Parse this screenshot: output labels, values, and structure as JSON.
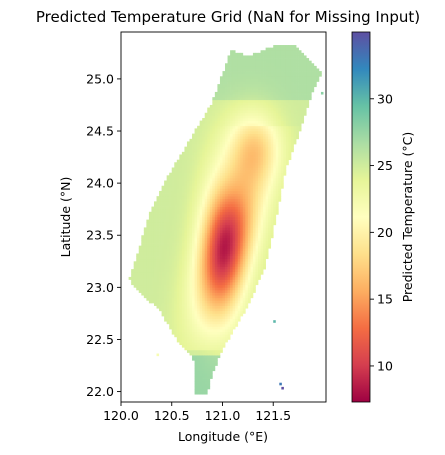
{
  "chart_data": {
    "type": "heatmap",
    "title": "Predicted Temperature Grid (NaN for Missing Input)",
    "xlabel": "Longitude (°E)",
    "ylabel": "Latitude (°N)",
    "xlim": [
      120.0,
      122.02
    ],
    "ylim": [
      21.9,
      25.45
    ],
    "x_ticks": [
      {
        "value": 120.0,
        "label": "120.0"
      },
      {
        "value": 120.5,
        "label": "120.5"
      },
      {
        "value": 121.0,
        "label": "121.0"
      },
      {
        "value": 121.5,
        "label": "121.5"
      }
    ],
    "y_ticks": [
      {
        "value": 22.0,
        "label": "22.0"
      },
      {
        "value": 22.5,
        "label": "22.5"
      },
      {
        "value": 23.0,
        "label": "23.0"
      },
      {
        "value": 23.5,
        "label": "23.5"
      },
      {
        "value": 24.0,
        "label": "24.0"
      },
      {
        "value": 24.5,
        "label": "24.5"
      },
      {
        "value": 25.0,
        "label": "25.0"
      }
    ],
    "colorbar": {
      "label": "Predicted Temperature (°C)",
      "colormap": "Spectral",
      "range": [
        7.3,
        35.0
      ],
      "ticks": [
        {
          "value": 10,
          "label": "10"
        },
        {
          "value": 15,
          "label": "15"
        },
        {
          "value": 20,
          "label": "20"
        },
        {
          "value": 25,
          "label": "25"
        },
        {
          "value": 30,
          "label": "30"
        }
      ]
    },
    "data_description": {
      "missing_value": "NaN",
      "approximate_min_c": 8,
      "approximate_max_c": 35,
      "coldest_region_lon_lat": [
        121.0,
        23.4
      ],
      "warmest_points_lon_lat": [
        [
          121.56,
          22.06
        ],
        [
          121.58,
          22.02
        ]
      ]
    }
  }
}
